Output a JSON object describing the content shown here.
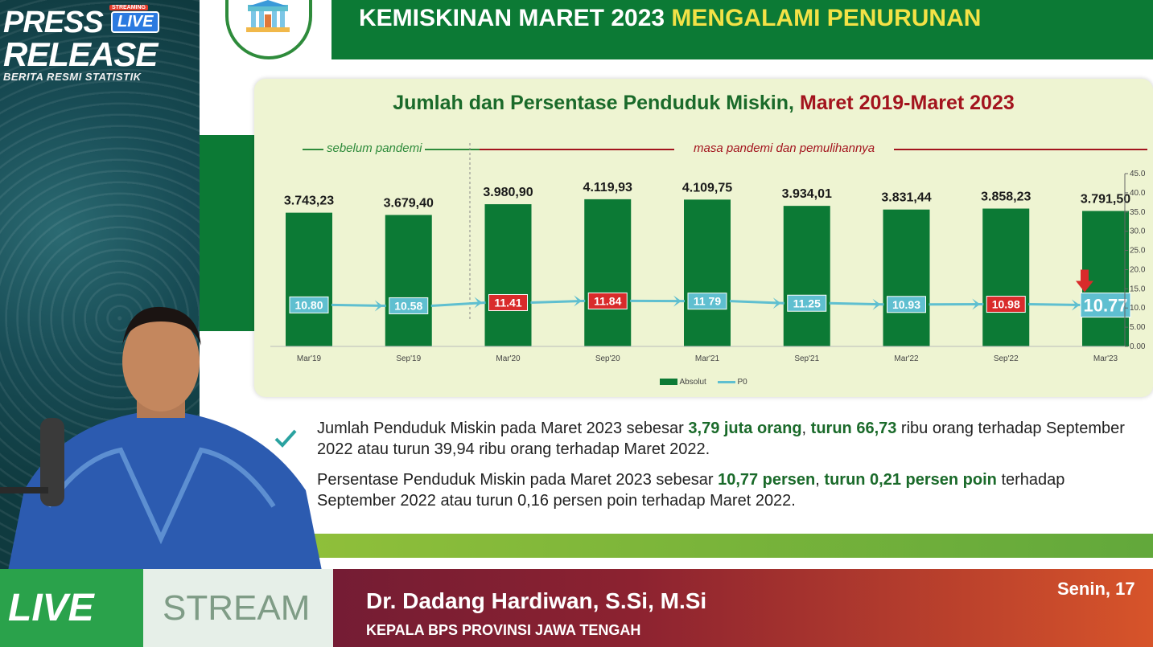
{
  "branding": {
    "press_line1": "PRESS",
    "press_line2": "RELEASE",
    "subtitle": "BERITA RESMI STATISTIK",
    "live_badge": "LIVE",
    "streaming_tag": "STREAMING"
  },
  "slide": {
    "title_main": "KEMISKINAN MARET 2023",
    "title_highlight": "MENGALAMI PENURUNAN",
    "period_before": "sebelum pandemi",
    "period_during": "masa pandemi dan pemulihannya"
  },
  "chart_data": {
    "type": "bar",
    "title_part1": "Jumlah dan Persentase Penduduk Miskin,",
    "title_part2": "Maret 2019-Maret 2023",
    "categories": [
      "Mar'19",
      "Sep'19",
      "Mar'20",
      "Sep'20",
      "Mar'21",
      "Sep'21",
      "Mar'22",
      "Sep'22",
      "Mar'23"
    ],
    "bar_labels": [
      "3.743,23",
      "3.679,40",
      "3.980,90",
      "4.119,93",
      "4.109,75",
      "3.934,01",
      "3.831,44",
      "3.858,23",
      "3.791,50"
    ],
    "series": [
      {
        "name": "Absolut",
        "type": "bar",
        "values": [
          3743.23,
          3679.4,
          3980.9,
          4119.93,
          4109.75,
          3934.01,
          3831.44,
          3858.23,
          3791.5
        ],
        "color": "#0c7a35"
      },
      {
        "name": "P0",
        "type": "line",
        "values": [
          10.8,
          10.58,
          11.41,
          11.84,
          11.79,
          11.25,
          10.93,
          10.98,
          10.77
        ],
        "labels": [
          "10.80",
          "10.58",
          "11.41",
          "11.84",
          "11 79",
          "11.25",
          "10.93",
          "10.98",
          "10.77"
        ],
        "color": "#5fbfd0",
        "highlight_color": "#d92b2b"
      }
    ],
    "right_axis_ticks": [
      "45.0",
      "40.0",
      "35.0",
      "30.0",
      "25.0",
      "20.0",
      "15.0",
      "10.0",
      "5.00",
      "0.00"
    ],
    "right_axis_range": [
      0,
      45
    ],
    "highlighted_indices": [
      2,
      3,
      7
    ],
    "arrow_at": "Mar'23",
    "legend_placement": "bottom-center",
    "grid": false
  },
  "bullets": [
    {
      "pre": "Jumlah Penduduk Miskin pada Maret 2023 sebesar ",
      "b1": "3,79 juta orang",
      "mid1": ", ",
      "b2": "turun 66,73",
      "post": " ribu orang terhadap September 2022 atau turun 39,94 ribu orang terhadap Maret 2022."
    },
    {
      "pre": "Persentase Penduduk Miskin pada Maret 2023 sebesar ",
      "b1": "10,77 persen",
      "mid1": ", ",
      "b2": "turun 0,21 persen poin",
      "post": " terhadap September 2022 atau turun 0,16 persen poin terhadap Maret 2022."
    }
  ],
  "lower_third": {
    "live": "LIVE",
    "stream": "STREAM",
    "name": "Dr. Dadang Hardiwan, S.Si, M.Si",
    "role": "KEPALA BPS PROVINSI JAWA TENGAH",
    "date": "Senin, 17"
  }
}
